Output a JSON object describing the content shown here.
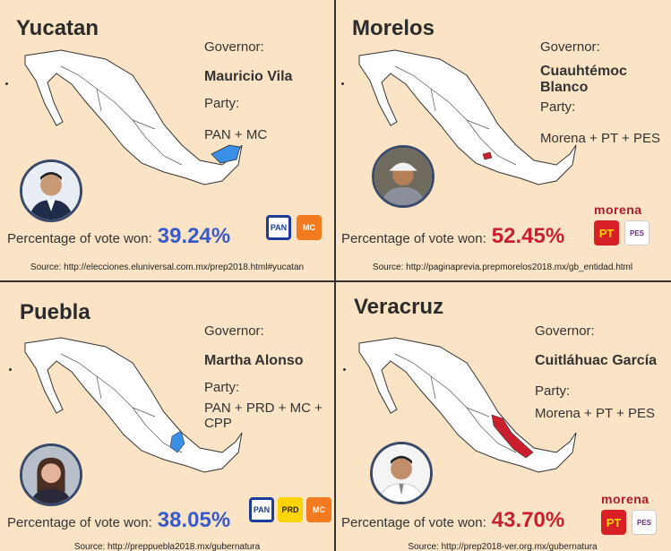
{
  "panels": [
    {
      "state": "Yucatan",
      "governor_label": "Governor:",
      "governor": "Mauricio Vila",
      "party_label": "Party:",
      "party": "PAN + MC",
      "pct_label": "Percentage of vote won:",
      "pct": "39.24%",
      "source": "Source: http://elecciones.eluniversal.com.mx/prep2018.html#yucatan",
      "highlight_color": "#3a8ee6",
      "logos": [
        "PAN",
        "MC"
      ]
    },
    {
      "state": "Morelos",
      "governor_label": "Governor:",
      "governor": "Cuauhtémoc Blanco",
      "party_label": "Party:",
      "party": "Morena + PT + PES",
      "pct_label": "Percentage of vote won:",
      "pct": "52.45%",
      "source": "Source: http://paginaprevia.prepmorelos2018.mx/gb_entidad.html",
      "highlight_color": "#cc1f2e",
      "morena_text": "morena",
      "logos": [
        "PT",
        "PES"
      ]
    },
    {
      "state": "Puebla",
      "governor_label": "Governor:",
      "governor": "Martha Alonso",
      "party_label": "Party:",
      "party": "PAN + PRD + MC + CPP",
      "pct_label": "Percentage of vote won:",
      "pct": "38.05%",
      "source": "Source: http://preppuebla2018.mx/gubernatura",
      "highlight_color": "#3a8ee6",
      "logos": [
        "PAN",
        "PRD",
        "MC"
      ]
    },
    {
      "state": "Veracruz",
      "governor_label": "Governor:",
      "governor": "Cuitláhuac García",
      "party_label": "Party:",
      "party": "Morena + PT + PES",
      "pct_label": "Percentage of vote won:",
      "pct": "43.70%",
      "source": "Source: http://prep2018-ver.org.mx/gubernatura",
      "highlight_color": "#cc1f2e",
      "morena_text": "morena",
      "logos": [
        "PT",
        "PES"
      ]
    }
  ],
  "colors": {
    "background": "#fbe3c5",
    "pan_blue": "#3a5bc7",
    "morena_red": "#cc1f2e"
  }
}
